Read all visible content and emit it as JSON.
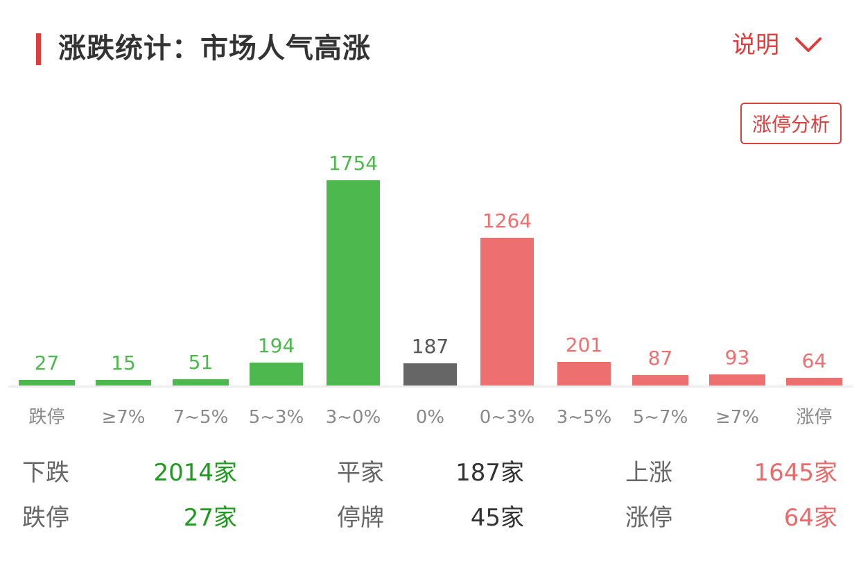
{
  "header": {
    "title": "涨跌统计：市场人气高涨",
    "explain_label": "说明",
    "explain_icon": "chevron-down-icon",
    "limit_up_button": "涨停分析"
  },
  "colors": {
    "accent": "#e03c3c",
    "down": "#4db84d",
    "flat": "#666666",
    "up": "#ee6f6f",
    "down_text": "#1e9a1e",
    "up_text": "#e86a6a",
    "axis_label": "#888888"
  },
  "chart_data": {
    "type": "bar",
    "title": "涨跌统计：市场人气高涨",
    "xlabel": "",
    "ylabel": "",
    "grid": false,
    "legend": "none",
    "categories": [
      "跌停",
      "≥7%",
      "7~5%",
      "5~3%",
      "3~0%",
      "0%",
      "0~3%",
      "3~5%",
      "5~7%",
      "≥7%",
      "涨停"
    ],
    "values": [
      27,
      15,
      51,
      194,
      1754,
      187,
      1264,
      201,
      87,
      93,
      64
    ],
    "bar_colors": [
      "#4db84d",
      "#4db84d",
      "#4db84d",
      "#4db84d",
      "#4db84d",
      "#666666",
      "#ee6f6f",
      "#ee6f6f",
      "#ee6f6f",
      "#ee6f6f",
      "#ee6f6f"
    ],
    "label_colors": [
      "#4db84d",
      "#4db84d",
      "#4db84d",
      "#4db84d",
      "#4db84d",
      "#555555",
      "#ee6f6f",
      "#ee6f6f",
      "#ee6f6f",
      "#ee6f6f",
      "#ee6f6f"
    ],
    "value_labels": [
      "27",
      "15",
      "51",
      "194",
      "1754",
      "187",
      "1264",
      "201",
      "87",
      "93",
      "64"
    ]
  },
  "summary": {
    "rows": [
      [
        {
          "label": "下跌",
          "value": "2014家",
          "color": "#1e9a1e"
        },
        {
          "label": "平家",
          "value": "187家",
          "color": "#333333"
        },
        {
          "label": "上涨",
          "value": "1645家",
          "color": "#e86a6a"
        }
      ],
      [
        {
          "label": "跌停",
          "value": "27家",
          "color": "#1e9a1e"
        },
        {
          "label": "停牌",
          "value": "45家",
          "color": "#333333"
        },
        {
          "label": "涨停",
          "value": "64家",
          "color": "#e86a6a"
        }
      ]
    ]
  }
}
